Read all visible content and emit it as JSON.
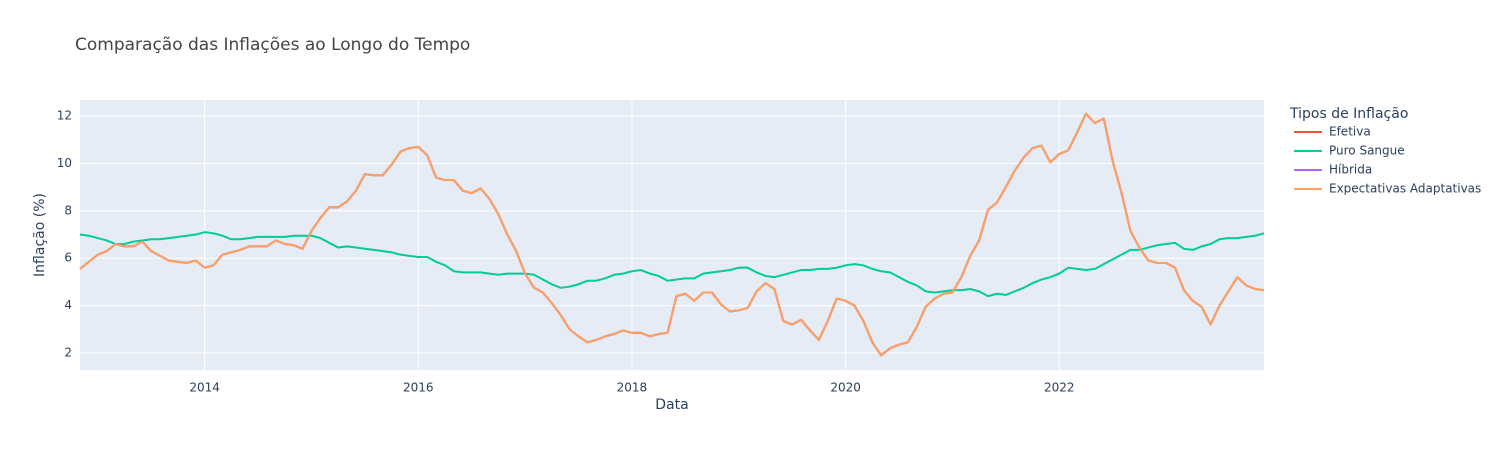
{
  "chart_data": {
    "type": "line",
    "title": "Comparação das Inflações ao Longo do Tempo",
    "x_label": "Data",
    "y_label": "Inflação (%)",
    "legend_title": "Tipos de Inflação",
    "x": [
      "2012-11",
      "2012-12",
      "2013-01",
      "2013-02",
      "2013-03",
      "2013-04",
      "2013-05",
      "2013-06",
      "2013-07",
      "2013-08",
      "2013-09",
      "2013-10",
      "2013-11",
      "2013-12",
      "2014-01",
      "2014-02",
      "2014-03",
      "2014-04",
      "2014-05",
      "2014-06",
      "2014-07",
      "2014-08",
      "2014-09",
      "2014-10",
      "2014-11",
      "2014-12",
      "2015-01",
      "2015-02",
      "2015-03",
      "2015-04",
      "2015-05",
      "2015-06",
      "2015-07",
      "2015-08",
      "2015-09",
      "2015-10",
      "2015-11",
      "2015-12",
      "2016-01",
      "2016-02",
      "2016-03",
      "2016-04",
      "2016-05",
      "2016-06",
      "2016-07",
      "2016-08",
      "2016-09",
      "2016-10",
      "2016-11",
      "2016-12",
      "2017-01",
      "2017-02",
      "2017-03",
      "2017-04",
      "2017-05",
      "2017-06",
      "2017-07",
      "2017-08",
      "2017-09",
      "2017-10",
      "2017-11",
      "2017-12",
      "2018-01",
      "2018-02",
      "2018-03",
      "2018-04",
      "2018-05",
      "2018-06",
      "2018-07",
      "2018-08",
      "2018-09",
      "2018-10",
      "2018-11",
      "2018-12",
      "2019-01",
      "2019-02",
      "2019-03",
      "2019-04",
      "2019-05",
      "2019-06",
      "2019-07",
      "2019-08",
      "2019-09",
      "2019-10",
      "2019-11",
      "2019-12",
      "2020-01",
      "2020-02",
      "2020-03",
      "2020-04",
      "2020-05",
      "2020-06",
      "2020-07",
      "2020-08",
      "2020-09",
      "2020-10",
      "2020-11",
      "2020-12",
      "2021-01",
      "2021-02",
      "2021-03",
      "2021-04",
      "2021-05",
      "2021-06",
      "2021-07",
      "2021-08",
      "2021-09",
      "2021-10",
      "2021-11",
      "2021-12",
      "2022-01",
      "2022-02",
      "2022-03",
      "2022-04",
      "2022-05",
      "2022-06",
      "2022-07",
      "2022-08",
      "2022-09",
      "2022-10",
      "2022-11",
      "2022-12",
      "2023-01",
      "2023-02",
      "2023-03",
      "2023-04",
      "2023-05",
      "2023-06",
      "2023-07",
      "2023-08",
      "2023-09",
      "2023-10",
      "2023-11",
      "2023-12"
    ],
    "series": [
      {
        "name": "Efetiva",
        "color": "#EF553B",
        "values": [
          5.55,
          5.85,
          6.15,
          6.3,
          6.6,
          6.5,
          6.5,
          6.7,
          6.3,
          6.1,
          5.9,
          5.85,
          5.8,
          5.9,
          5.6,
          5.7,
          6.15,
          6.25,
          6.35,
          6.5,
          6.5,
          6.5,
          6.75,
          6.6,
          6.55,
          6.4,
          7.15,
          7.7,
          8.15,
          8.15,
          8.4,
          8.85,
          9.55,
          9.5,
          9.5,
          9.95,
          10.5,
          10.65,
          10.7,
          10.35,
          9.4,
          9.3,
          9.3,
          8.85,
          8.75,
          8.95,
          8.5,
          7.85,
          7.0,
          6.3,
          5.35,
          4.75,
          4.55,
          4.1,
          3.6,
          3.0,
          2.7,
          2.45,
          2.55,
          2.7,
          2.8,
          2.95,
          2.85,
          2.85,
          2.7,
          2.8,
          2.85,
          4.4,
          4.5,
          4.2,
          4.55,
          4.55,
          4.05,
          3.75,
          3.8,
          3.9,
          4.6,
          4.95,
          4.7,
          3.35,
          3.2,
          3.4,
          2.95,
          2.55,
          3.35,
          4.3,
          4.2,
          4.0,
          3.35,
          2.45,
          1.9,
          2.2,
          2.35,
          2.45,
          3.1,
          3.95,
          4.3,
          4.5,
          4.55,
          5.2,
          6.1,
          6.75,
          8.05,
          8.35,
          9.0,
          9.7,
          10.25,
          10.65,
          10.75,
          10.05,
          10.4,
          10.55,
          11.3,
          12.1,
          11.7,
          11.9,
          10.1,
          8.75,
          7.15,
          6.45,
          5.9,
          5.8,
          5.8,
          5.6,
          4.65,
          4.2,
          3.95,
          3.2,
          4.0,
          4.6,
          5.2,
          4.85,
          4.7,
          4.65
        ]
      },
      {
        "name": "Puro Sangue",
        "color": "#00CC96",
        "values": [
          7.0,
          6.95,
          6.85,
          6.75,
          6.6,
          6.6,
          6.7,
          6.75,
          6.8,
          6.8,
          6.85,
          6.9,
          6.95,
          7.0,
          7.1,
          7.05,
          6.95,
          6.8,
          6.8,
          6.85,
          6.9,
          6.9,
          6.9,
          6.9,
          6.95,
          6.95,
          6.95,
          6.85,
          6.65,
          6.45,
          6.5,
          6.45,
          6.4,
          6.35,
          6.3,
          6.25,
          6.15,
          6.1,
          6.05,
          6.05,
          5.85,
          5.7,
          5.45,
          5.4,
          5.4,
          5.4,
          5.35,
          5.3,
          5.35,
          5.35,
          5.35,
          5.3,
          5.1,
          4.9,
          4.75,
          4.8,
          4.9,
          5.05,
          5.05,
          5.15,
          5.3,
          5.35,
          5.45,
          5.5,
          5.35,
          5.25,
          5.05,
          5.1,
          5.15,
          5.15,
          5.35,
          5.4,
          5.45,
          5.5,
          5.6,
          5.6,
          5.4,
          5.25,
          5.2,
          5.3,
          5.4,
          5.5,
          5.5,
          5.55,
          5.55,
          5.6,
          5.7,
          5.75,
          5.7,
          5.55,
          5.45,
          5.4,
          5.2,
          5.0,
          4.85,
          4.6,
          4.55,
          4.6,
          4.65,
          4.65,
          4.7,
          4.6,
          4.4,
          4.5,
          4.45,
          4.6,
          4.75,
          4.95,
          5.1,
          5.2,
          5.35,
          5.6,
          5.55,
          5.5,
          5.55,
          5.75,
          5.95,
          6.15,
          6.35,
          6.35,
          6.45,
          6.55,
          6.6,
          6.65,
          6.4,
          6.35,
          6.5,
          6.6,
          6.8,
          6.85,
          6.85,
          6.9,
          6.95,
          7.05
        ]
      },
      {
        "name": "Híbrida",
        "color": "#AB63FA",
        "values": [
          5.55,
          5.85,
          6.15,
          6.3,
          6.6,
          6.5,
          6.5,
          6.7,
          6.3,
          6.1,
          5.9,
          5.85,
          5.8,
          5.9,
          5.6,
          5.7,
          6.15,
          6.25,
          6.35,
          6.5,
          6.5,
          6.5,
          6.75,
          6.6,
          6.55,
          6.4,
          7.15,
          7.7,
          8.15,
          8.15,
          8.4,
          8.85,
          9.55,
          9.5,
          9.5,
          9.95,
          10.5,
          10.65,
          10.7,
          10.35,
          9.4,
          9.3,
          9.3,
          8.85,
          8.75,
          8.95,
          8.5,
          7.85,
          7.0,
          6.3,
          5.35,
          4.75,
          4.55,
          4.1,
          3.6,
          3.0,
          2.7,
          2.45,
          2.55,
          2.7,
          2.8,
          2.95,
          2.85,
          2.85,
          2.7,
          2.8,
          2.85,
          4.4,
          4.5,
          4.2,
          4.55,
          4.55,
          4.05,
          3.75,
          3.8,
          3.9,
          4.6,
          4.95,
          4.7,
          3.35,
          3.2,
          3.4,
          2.95,
          2.55,
          3.35,
          4.3,
          4.2,
          4.0,
          3.35,
          2.45,
          1.9,
          2.2,
          2.35,
          2.45,
          3.1,
          3.95,
          4.3,
          4.5,
          4.55,
          5.2,
          6.1,
          6.75,
          8.05,
          8.35,
          9.0,
          9.7,
          10.25,
          10.65,
          10.75,
          10.05,
          10.4,
          10.55,
          11.3,
          12.1,
          11.7,
          11.9,
          10.1,
          8.75,
          7.15,
          6.45,
          5.9,
          5.8,
          5.8,
          5.6,
          4.65,
          4.2,
          3.95,
          3.2,
          4.0,
          4.6,
          5.2,
          4.85,
          4.7,
          4.65
        ]
      },
      {
        "name": "Expectativas Adaptativas",
        "color": "#FFA15A",
        "values": [
          5.55,
          5.85,
          6.15,
          6.3,
          6.6,
          6.5,
          6.5,
          6.7,
          6.3,
          6.1,
          5.9,
          5.85,
          5.8,
          5.9,
          5.6,
          5.7,
          6.15,
          6.25,
          6.35,
          6.5,
          6.5,
          6.5,
          6.75,
          6.6,
          6.55,
          6.4,
          7.15,
          7.7,
          8.15,
          8.15,
          8.4,
          8.85,
          9.55,
          9.5,
          9.5,
          9.95,
          10.5,
          10.65,
          10.7,
          10.35,
          9.4,
          9.3,
          9.3,
          8.85,
          8.75,
          8.95,
          8.5,
          7.85,
          7.0,
          6.3,
          5.35,
          4.75,
          4.55,
          4.1,
          3.6,
          3.0,
          2.7,
          2.45,
          2.55,
          2.7,
          2.8,
          2.95,
          2.85,
          2.85,
          2.7,
          2.8,
          2.85,
          4.4,
          4.5,
          4.2,
          4.55,
          4.55,
          4.05,
          3.75,
          3.8,
          3.9,
          4.6,
          4.95,
          4.7,
          3.35,
          3.2,
          3.4,
          2.95,
          2.55,
          3.35,
          4.3,
          4.2,
          4.0,
          3.35,
          2.45,
          1.9,
          2.2,
          2.35,
          2.45,
          3.1,
          3.95,
          4.3,
          4.5,
          4.55,
          5.2,
          6.1,
          6.75,
          8.05,
          8.35,
          9.0,
          9.7,
          10.25,
          10.65,
          10.75,
          10.05,
          10.4,
          10.55,
          11.3,
          12.1,
          11.7,
          11.9,
          10.1,
          8.75,
          7.15,
          6.45,
          5.9,
          5.8,
          5.8,
          5.6,
          4.65,
          4.2,
          3.95,
          3.2,
          4.0,
          4.6,
          5.2,
          4.85,
          4.7,
          4.65
        ]
      }
    ],
    "xlim": [
      "2012-11",
      "2023-12"
    ],
    "xticks": [
      "2014",
      "2016",
      "2018",
      "2020",
      "2022"
    ],
    "ylim": [
      1.28,
      12.68
    ],
    "yticks": [
      2,
      4,
      6,
      8,
      10,
      12
    ],
    "grid": true
  }
}
